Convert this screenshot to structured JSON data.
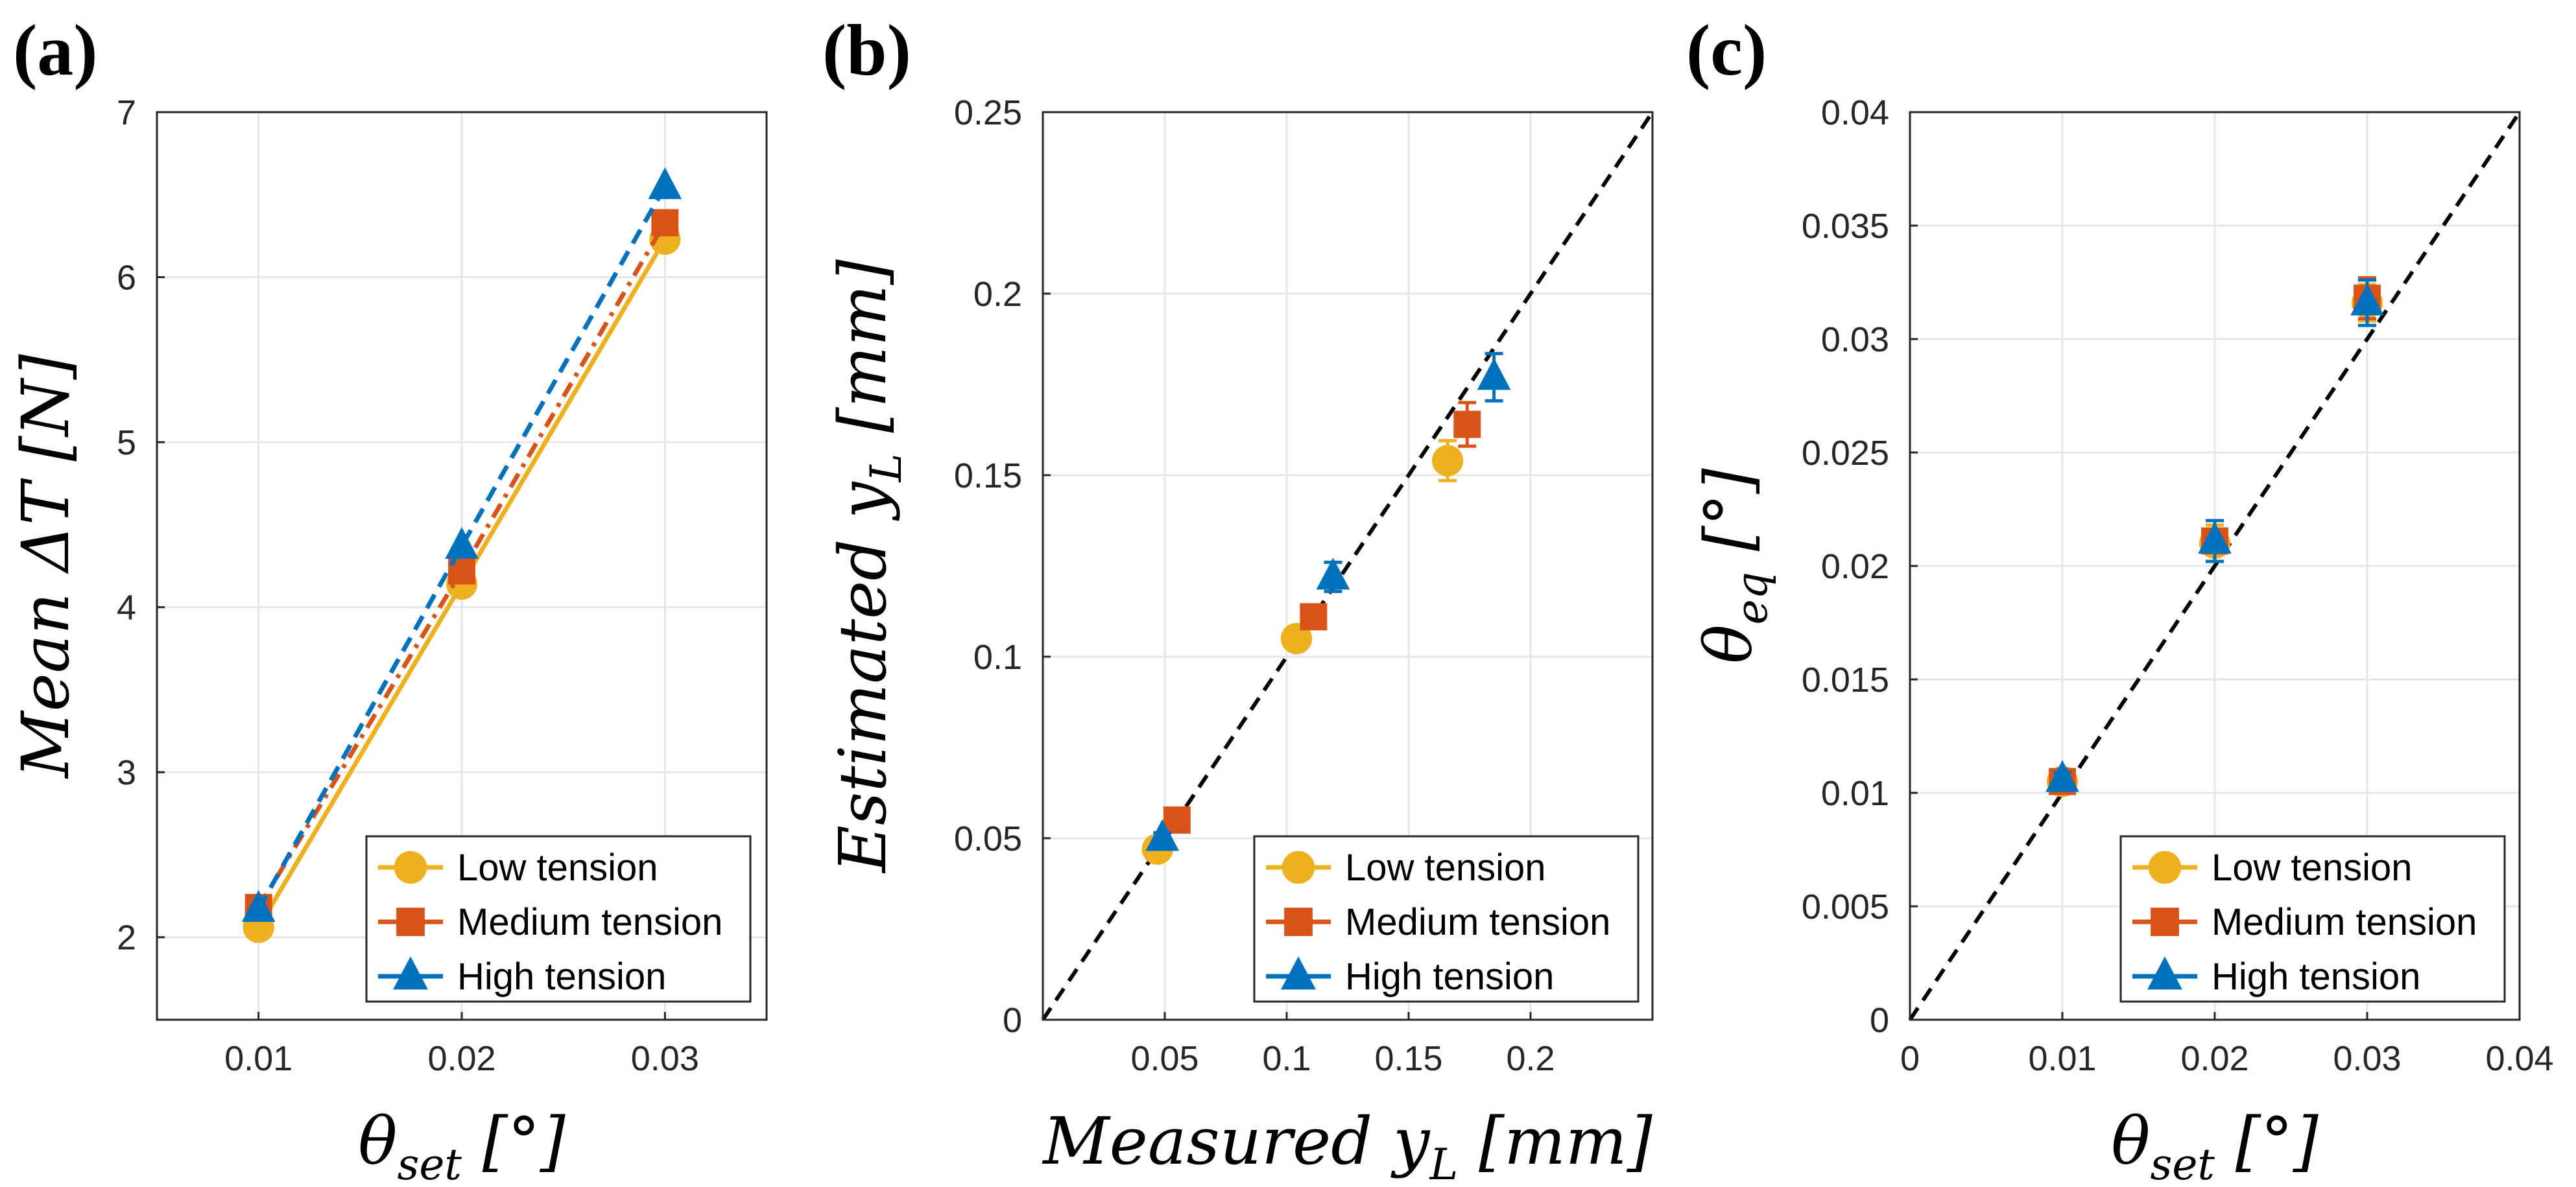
{
  "colors": {
    "low": "#EDB120",
    "medium": "#D95319",
    "high": "#0072BD",
    "identity": "#000000"
  },
  "legend_entries": [
    "Low tension",
    "Medium tension",
    "High tension"
  ],
  "chart_data": [
    {
      "id": "a",
      "panel_label": "(a)",
      "type": "line",
      "title": "",
      "xlabel": "θ_set [°]",
      "xlabel_main": "θ",
      "xlabel_sub": "set",
      "xlabel_unit": " [°]",
      "ylabel": "Mean ΔT [N]",
      "ylabel_main": "Mean ΔT [N]",
      "ylabel_sub": "",
      "ylabel_unit": "",
      "xlim": [
        0.005,
        0.035
      ],
      "ylim": [
        1.5,
        7
      ],
      "xticks": [
        0.01,
        0.02,
        0.03
      ],
      "xtick_labels": [
        "0.01",
        "0.02",
        "0.03"
      ],
      "yticks": [
        2,
        3,
        4,
        5,
        6,
        7
      ],
      "ytick_labels": [
        "2",
        "3",
        "4",
        "5",
        "6",
        "7"
      ],
      "grid": true,
      "legend_position": "bottom-right",
      "identity_line": false,
      "series": [
        {
          "name": "Low tension",
          "key": "low",
          "marker": "circle",
          "line": "solid",
          "x": [
            0.01,
            0.02,
            0.03
          ],
          "y": [
            2.06,
            4.14,
            6.23
          ]
        },
        {
          "name": "Medium tension",
          "key": "medium",
          "marker": "square",
          "line": "dashdot",
          "x": [
            0.01,
            0.02,
            0.03
          ],
          "y": [
            2.18,
            4.22,
            6.33
          ]
        },
        {
          "name": "High tension",
          "key": "high",
          "marker": "triangle",
          "line": "dashed",
          "x": [
            0.01,
            0.02,
            0.03
          ],
          "y": [
            2.17,
            4.37,
            6.55
          ]
        }
      ]
    },
    {
      "id": "b",
      "panel_label": "(b)",
      "type": "scatter",
      "title": "",
      "xlabel": "Measured y_L [mm]",
      "xlabel_main": "Measured y",
      "xlabel_sub": "L",
      "xlabel_unit": " [mm]",
      "ylabel": "Estimated y_L [mm]",
      "ylabel_main": "Estimated y",
      "ylabel_sub": "L",
      "ylabel_unit": " [mm]",
      "xlim": [
        0,
        0.25
      ],
      "ylim": [
        0,
        0.25
      ],
      "xticks": [
        0.05,
        0.1,
        0.15,
        0.2
      ],
      "xtick_labels": [
        "0.05",
        "0.1",
        "0.15",
        "0.2"
      ],
      "yticks": [
        0,
        0.05,
        0.1,
        0.15,
        0.2,
        0.25
      ],
      "ytick_labels": [
        "0",
        "0.05",
        "0.1",
        "0.15",
        "0.2",
        "0.25"
      ],
      "grid": true,
      "legend_position": "bottom-right",
      "identity_line": true,
      "series": [
        {
          "name": "Low tension",
          "key": "low",
          "marker": "circle",
          "x": [
            0.047,
            0.104,
            0.166
          ],
          "y": [
            0.047,
            0.105,
            0.154
          ],
          "err": [
            0.0015,
            0.0015,
            0.0055
          ]
        },
        {
          "name": "Medium tension",
          "key": "medium",
          "marker": "square",
          "x": [
            0.055,
            0.111,
            0.174
          ],
          "y": [
            0.055,
            0.111,
            0.164
          ],
          "err": [
            0.0015,
            0.0015,
            0.006
          ]
        },
        {
          "name": "High tension",
          "key": "high",
          "marker": "triangle",
          "x": [
            0.049,
            0.119,
            0.185
          ],
          "y": [
            0.05,
            0.122,
            0.177
          ],
          "err": [
            0.0015,
            0.004,
            0.0065
          ]
        }
      ]
    },
    {
      "id": "c",
      "panel_label": "(c)",
      "type": "scatter",
      "title": "",
      "xlabel": "θ_set [°]",
      "xlabel_main": "θ",
      "xlabel_sub": "set",
      "xlabel_unit": " [°]",
      "ylabel": "θ_eq [°]",
      "ylabel_main": "θ",
      "ylabel_sub": "eq",
      "ylabel_unit": " [°]",
      "xlim": [
        0,
        0.04
      ],
      "ylim": [
        0,
        0.04
      ],
      "xticks": [
        0,
        0.01,
        0.02,
        0.03,
        0.04
      ],
      "xtick_labels": [
        "0",
        "0.01",
        "0.02",
        "0.03",
        "0.04"
      ],
      "yticks": [
        0,
        0.005,
        0.01,
        0.015,
        0.02,
        0.025,
        0.03,
        0.035,
        0.04
      ],
      "ytick_labels": [
        "0",
        "0.005",
        "0.01",
        "0.015",
        "0.02",
        "0.025",
        "0.03",
        "0.035",
        "0.04"
      ],
      "grid": true,
      "legend_position": "bottom-right",
      "identity_line": true,
      "series": [
        {
          "name": "Low tension",
          "key": "low",
          "marker": "circle",
          "x": [
            0.01,
            0.02,
            0.03
          ],
          "y": [
            0.0105,
            0.021,
            0.0316
          ],
          "err": [
            0.0003,
            0.0008,
            0.0008
          ]
        },
        {
          "name": "Medium tension",
          "key": "medium",
          "marker": "square",
          "x": [
            0.01,
            0.02,
            0.03
          ],
          "y": [
            0.0105,
            0.0211,
            0.0318
          ],
          "err": [
            0.0003,
            0.0009,
            0.0009
          ]
        },
        {
          "name": "High tension",
          "key": "high",
          "marker": "triangle",
          "x": [
            0.01,
            0.02,
            0.03
          ],
          "y": [
            0.0106,
            0.0211,
            0.0316
          ],
          "err": [
            0.0003,
            0.0009,
            0.001
          ]
        }
      ]
    }
  ]
}
